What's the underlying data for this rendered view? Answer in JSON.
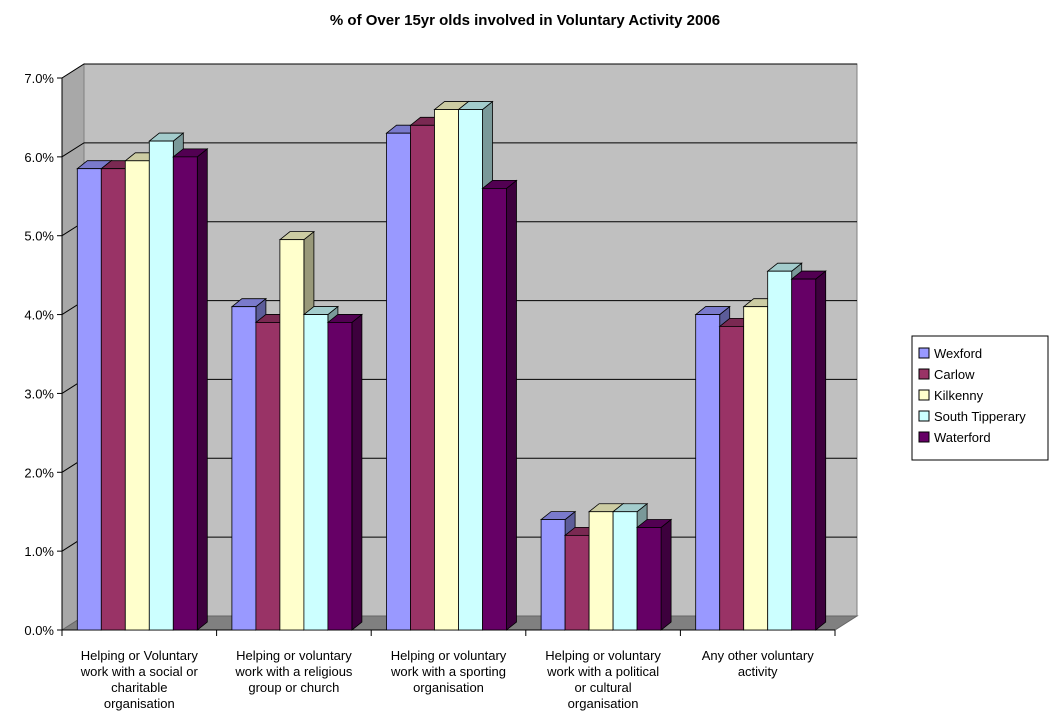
{
  "chart_data": {
    "type": "bar",
    "title": "% of Over 15yr olds involved in Voluntary Activity 2006",
    "xlabel": "",
    "ylabel": "",
    "ylim": [
      0,
      7
    ],
    "yticks": [
      "0.0%",
      "1.0%",
      "2.0%",
      "3.0%",
      "4.0%",
      "5.0%",
      "6.0%",
      "7.0%"
    ],
    "categories": [
      "Helping or Voluntary work with a social or charitable organisation",
      "Helping or voluntary work with a religious group or church",
      "Helping or voluntary work with a sporting organisation",
      "Helping or voluntary work with a political or cultural organisation",
      "Any other voluntary activity"
    ],
    "category_lines": [
      [
        "Helping or Voluntary",
        "work with a social or",
        "charitable",
        "organisation"
      ],
      [
        "Helping or voluntary",
        "work with a religious",
        "group or church"
      ],
      [
        "Helping or voluntary",
        "work with a sporting",
        "organisation"
      ],
      [
        "Helping or voluntary",
        "work with a political",
        "or cultural",
        "organisation"
      ],
      [
        "Any other voluntary",
        "activity"
      ]
    ],
    "series": [
      {
        "name": "Wexford",
        "color": "#9999FF",
        "values": [
          5.85,
          4.1,
          6.3,
          1.4,
          4.0
        ]
      },
      {
        "name": "Carlow",
        "color": "#993366",
        "values": [
          5.85,
          3.9,
          6.4,
          1.2,
          3.85
        ]
      },
      {
        "name": "Kilkenny",
        "color": "#FFFFCC",
        "values": [
          5.95,
          4.95,
          6.6,
          1.5,
          4.1
        ]
      },
      {
        "name": "South Tipperary",
        "color": "#CCFFFF",
        "values": [
          6.2,
          4.0,
          6.6,
          1.5,
          4.55
        ]
      },
      {
        "name": "Waterford",
        "color": "#660066",
        "values": [
          6.0,
          3.9,
          5.6,
          1.3,
          4.45
        ]
      }
    ],
    "grid": true,
    "legend_position": "right",
    "background_color": "#C0C0C0"
  }
}
